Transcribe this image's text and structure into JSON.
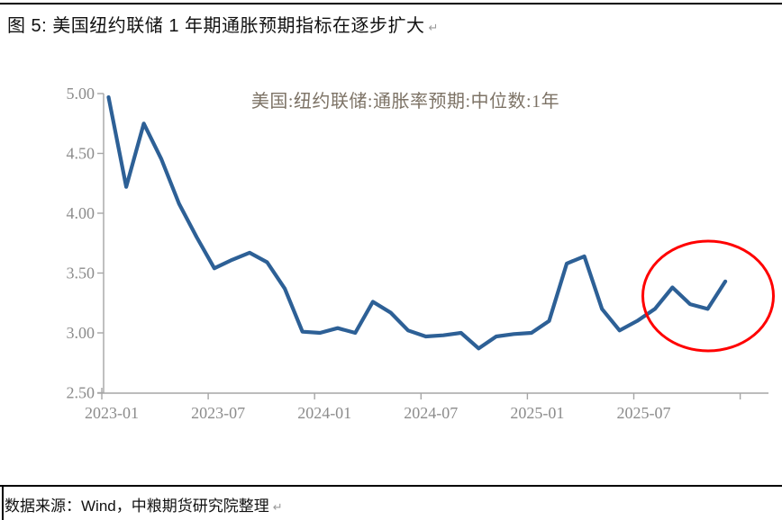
{
  "header": {
    "title": "图 5:  美国纽约联储 1 年期通胀预期指标在逐步扩大",
    "paragraph_mark": "↵"
  },
  "chart_data": {
    "type": "line",
    "title": "美国:纽约联储:通胀率预期:中位数:1年",
    "x": [
      "2023-01",
      "2023-02",
      "2023-03",
      "2023-04",
      "2023-05",
      "2023-06",
      "2023-07",
      "2023-08",
      "2023-09",
      "2023-10",
      "2023-11",
      "2023-12",
      "2024-01",
      "2024-02",
      "2024-03",
      "2024-04",
      "2024-05",
      "2024-06",
      "2024-07",
      "2024-08",
      "2024-09",
      "2024-10",
      "2024-11",
      "2024-12",
      "2025-01",
      "2025-02",
      "2025-03",
      "2025-04",
      "2025-05",
      "2025-06",
      "2025-07",
      "2025-08",
      "2025-09",
      "2025-10",
      "2025-11",
      "2025-12"
    ],
    "values": [
      4.97,
      4.22,
      4.75,
      4.45,
      4.08,
      3.8,
      3.54,
      3.61,
      3.67,
      3.59,
      3.37,
      3.01,
      3.0,
      3.04,
      3.0,
      3.26,
      3.17,
      3.02,
      2.97,
      2.98,
      3.0,
      2.87,
      2.97,
      2.99,
      3.0,
      3.1,
      3.58,
      3.64,
      3.2,
      3.02,
      3.1,
      3.2,
      3.38,
      3.24,
      3.2,
      3.43
    ],
    "x_tick_labels": [
      "2023-01",
      "2023-07",
      "2024-01",
      "2024-07",
      "2025-01",
      "2025-07"
    ],
    "y_ticks": [
      "5.00",
      "4.50",
      "4.00",
      "3.50",
      "3.00",
      "2.50"
    ],
    "ylim": [
      2.5,
      5.0
    ],
    "grid": false,
    "legend": false,
    "line_color": "#2D6096",
    "axis_color": "#A6A6A6",
    "label_color": "#8C8C8C",
    "title_color": "#7D7366",
    "annotation": {
      "type": "ellipse",
      "meaning": "highlight-recent-rebound",
      "color": "#FF0000"
    }
  },
  "footer": {
    "source": "数据来源：Wind，中粮期货研究院整理",
    "paragraph_mark": "↵"
  }
}
